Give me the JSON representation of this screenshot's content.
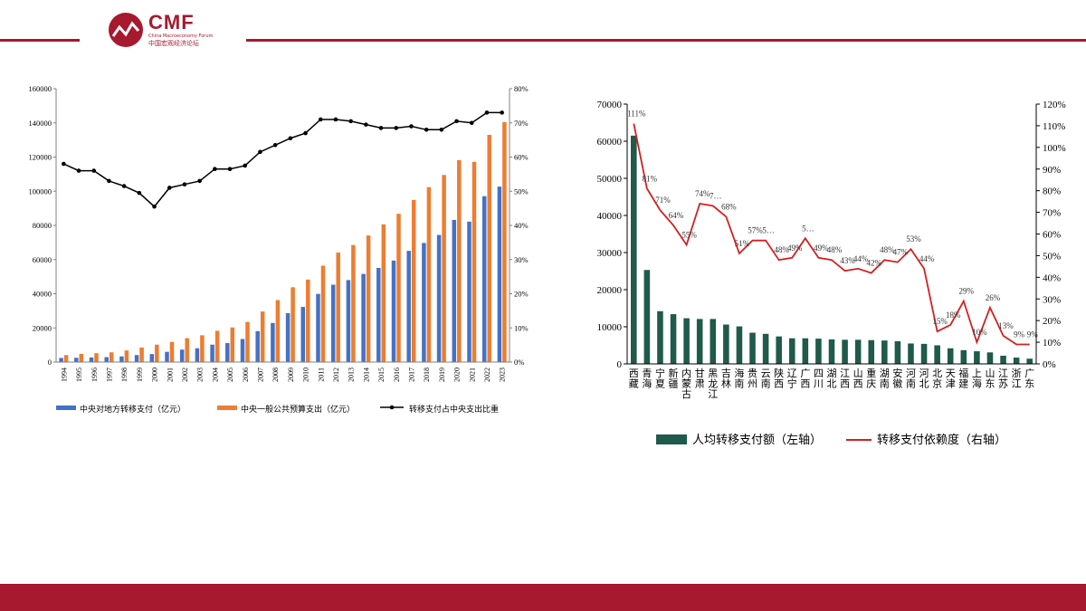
{
  "header": {
    "logo_text": "CMF",
    "logo_sub": "China Macroeconomy Forum",
    "logo_cn": "中国宏观经济论坛",
    "brand_color": "#a6192e"
  },
  "colors": {
    "blue": "#4472c4",
    "orange": "#ed7d31",
    "black": "#000000",
    "teal": "#1f5a4a",
    "red": "#d42020"
  },
  "chart_data": [
    {
      "type": "bar",
      "categories": [
        "1994",
        "1995",
        "1996",
        "1997",
        "1998",
        "1999",
        "2000",
        "2001",
        "2002",
        "2003",
        "2004",
        "2005",
        "2006",
        "2007",
        "2008",
        "2009",
        "2010",
        "2011",
        "2012",
        "2013",
        "2014",
        "2015",
        "2016",
        "2017",
        "2018",
        "2019",
        "2020",
        "2021",
        "2022",
        "2023"
      ],
      "series": [
        {
          "name": "中央对地方转移支付（亿元）",
          "type": "bar",
          "axis": "left",
          "values": [
            2400,
            2500,
            2700,
            2900,
            3300,
            4100,
            4700,
            6000,
            7300,
            8100,
            10200,
            11100,
            13500,
            18100,
            22900,
            28600,
            32300,
            39900,
            45300,
            48000,
            51600,
            55100,
            59400,
            65100,
            69700,
            74400,
            83200,
            82200,
            97100,
            102700
          ]
        },
        {
          "name": "中央一般公共预算支出（亿元）",
          "type": "bar",
          "axis": "left",
          "values": [
            4100,
            4800,
            5200,
            5700,
            6800,
            8500,
            10200,
            11800,
            14000,
            15700,
            18300,
            20300,
            23500,
            29600,
            36300,
            43800,
            48300,
            56400,
            64100,
            68500,
            74100,
            80600,
            86800,
            94900,
            102400,
            109500,
            118200,
            117200,
            133000,
            140500
          ]
        },
        {
          "name": "转移支付占中央支出比重",
          "type": "line",
          "axis": "right",
          "values": [
            58,
            56,
            56,
            53,
            51.5,
            49.5,
            45.5,
            51,
            52,
            53,
            56.5,
            56.5,
            57.5,
            61.5,
            63.5,
            65.5,
            67,
            71,
            71,
            70.5,
            69.5,
            68.5,
            68.5,
            69,
            68,
            68,
            70.5,
            70,
            73,
            73
          ]
        }
      ],
      "ylim_left": [
        0,
        160000
      ],
      "yticks_left": [
        "0",
        "20000",
        "40000",
        "60000",
        "80000",
        "100000",
        "120000",
        "140000",
        "160000"
      ],
      "ylim_right": [
        0,
        80
      ],
      "yticks_right": [
        "0%",
        "10%",
        "20%",
        "30%",
        "40%",
        "50%",
        "60%",
        "70%",
        "80%"
      ],
      "legend": [
        "中央对地方转移支付（亿元）",
        "中央一般公共预算支出（亿元）",
        "转移支付占中央支出比重"
      ],
      "legend_position": "bottom"
    },
    {
      "type": "bar",
      "categories": [
        "西藏",
        "青海",
        "宁夏",
        "新疆",
        "内蒙古",
        "甘肃",
        "黑龙江",
        "吉林",
        "海南",
        "贵州",
        "云南",
        "陕西",
        "辽宁",
        "广西",
        "四川",
        "湖北",
        "江西",
        "山西",
        "重庆",
        "湖南",
        "安徽",
        "河南",
        "河北",
        "北京",
        "天津",
        "福建",
        "上海",
        "山东",
        "江苏",
        "浙江",
        "广东"
      ],
      "series": [
        {
          "name": "人均转移支付额（左轴）",
          "type": "bar",
          "axis": "left",
          "values": [
            61500,
            25300,
            14200,
            13400,
            12300,
            12100,
            12100,
            10600,
            10100,
            8400,
            8100,
            7400,
            6900,
            6900,
            6800,
            6600,
            6500,
            6500,
            6400,
            6300,
            6100,
            5500,
            5400,
            5000,
            4200,
            3700,
            3400,
            3100,
            2200,
            1700,
            1400
          ]
        },
        {
          "name": "转移支付依赖度（右轴）",
          "type": "line",
          "axis": "right",
          "values": [
            111,
            81,
            71,
            64,
            55,
            74,
            73,
            68,
            51,
            57,
            57,
            48,
            49,
            58,
            49,
            48,
            43,
            44,
            42,
            48,
            47,
            53,
            44,
            15,
            18,
            29,
            10,
            26,
            13,
            9,
            9
          ]
        }
      ],
      "point_labels": [
        "111%",
        "81%",
        "71%",
        "64%",
        "55%",
        "74%",
        "7…",
        "68%",
        "51%",
        "57%",
        "5…",
        "48%",
        "49%",
        "5…",
        "49%",
        "48%",
        "43%",
        "44%",
        "42%",
        "48%",
        "47%",
        "53%",
        "44%",
        "15%",
        "18%",
        "29%",
        "10%",
        "26%",
        "13%",
        "9%",
        "9%"
      ],
      "ylim_left": [
        0,
        70000
      ],
      "yticks_left": [
        "0",
        "10000",
        "20000",
        "30000",
        "40000",
        "50000",
        "60000",
        "70000"
      ],
      "ylim_right": [
        0,
        120
      ],
      "yticks_right": [
        "0%",
        "10%",
        "20%",
        "30%",
        "40%",
        "50%",
        "60%",
        "70%",
        "80%",
        "90%",
        "100%",
        "110%",
        "120%"
      ],
      "legend": [
        "人均转移支付额（左轴）",
        "转移支付依赖度（右轴）"
      ],
      "legend_position": "bottom"
    }
  ]
}
